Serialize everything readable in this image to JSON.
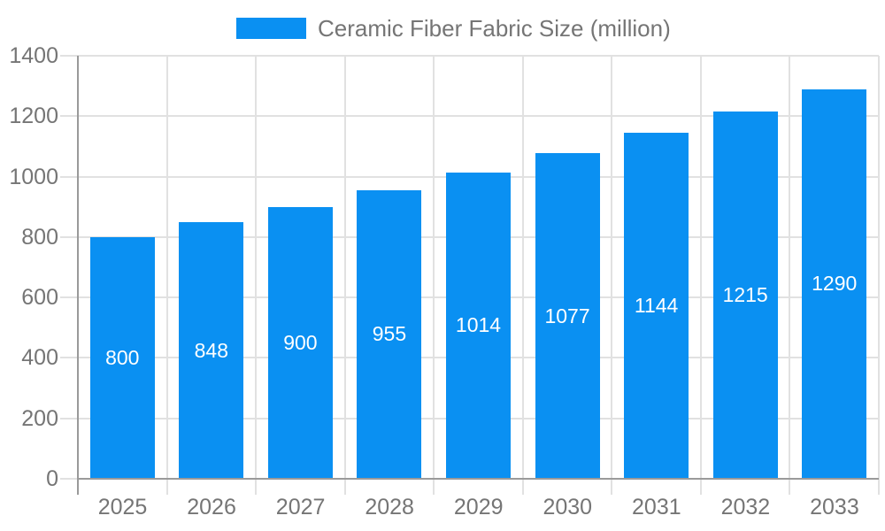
{
  "legend": {
    "label": "Ceramic Fiber Fabric Size (million)"
  },
  "colors": {
    "bar": "#0a90f2",
    "axis_line": "#9a9a9a",
    "gridline": "#e1e1e1",
    "axis_text": "#757575",
    "value_label_text": "#ffffff",
    "background": "#ffffff"
  },
  "chart_data": {
    "type": "bar",
    "title": "Ceramic Fiber Fabric Size (million)",
    "categories": [
      "2025",
      "2026",
      "2027",
      "2028",
      "2029",
      "2030",
      "2031",
      "2032",
      "2033"
    ],
    "values": [
      800,
      848,
      900,
      955,
      1014,
      1077,
      1144,
      1215,
      1290
    ],
    "xlabel": "",
    "ylabel": "",
    "ylim": [
      0,
      1400
    ],
    "yticks": [
      0,
      200,
      400,
      600,
      800,
      1000,
      1200,
      1400
    ],
    "grid": true,
    "legend_position": "top-center",
    "value_labels_position": "inside-middle"
  }
}
